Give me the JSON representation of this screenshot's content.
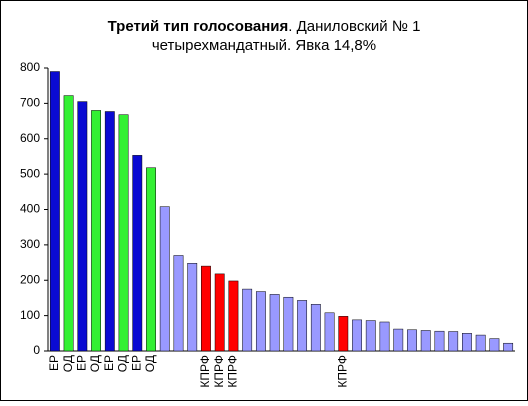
{
  "chart_data": {
    "type": "bar",
    "title_bold": "Третий тип голосования",
    "title": ". Даниловский № 1",
    "subtitle": "четырехмандатный. Явка 14,8%",
    "categories": [
      "ЕР",
      "ОД",
      "ЕР",
      "ОД",
      "ЕР",
      "ОД",
      "ЕР",
      "ОД",
      null,
      null,
      null,
      "КПРФ",
      "КПРФ",
      "КПРФ",
      null,
      null,
      null,
      null,
      null,
      null,
      null,
      "КПРФ",
      null,
      null,
      null,
      null,
      null,
      null,
      null,
      null,
      null,
      null,
      null,
      null
    ],
    "values": [
      790,
      722,
      705,
      680,
      677,
      668,
      553,
      518,
      408,
      270,
      248,
      240,
      218,
      198,
      175,
      168,
      160,
      152,
      143,
      132,
      108,
      98,
      88,
      86,
      82,
      62,
      60,
      58,
      56,
      55,
      50,
      45,
      35,
      22
    ],
    "colors": [
      "#0a0ad2",
      "#33f033",
      "#0a0ad2",
      "#33f033",
      "#0a0ad2",
      "#33f033",
      "#0a0ad2",
      "#33f033",
      "#9999ff",
      "#9999ff",
      "#9999ff",
      "#ff0000",
      "#ff0000",
      "#ff0000",
      "#9999ff",
      "#9999ff",
      "#9999ff",
      "#9999ff",
      "#9999ff",
      "#9999ff",
      "#9999ff",
      "#ff0000",
      "#9999ff",
      "#9999ff",
      "#9999ff",
      "#9999ff",
      "#9999ff",
      "#9999ff",
      "#9999ff",
      "#9999ff",
      "#9999ff",
      "#9999ff",
      "#9999ff",
      "#9999ff"
    ],
    "ylim": [
      0,
      800
    ],
    "yticks": [
      0,
      100,
      200,
      300,
      400,
      500,
      600,
      700,
      800
    ],
    "grid": false
  }
}
